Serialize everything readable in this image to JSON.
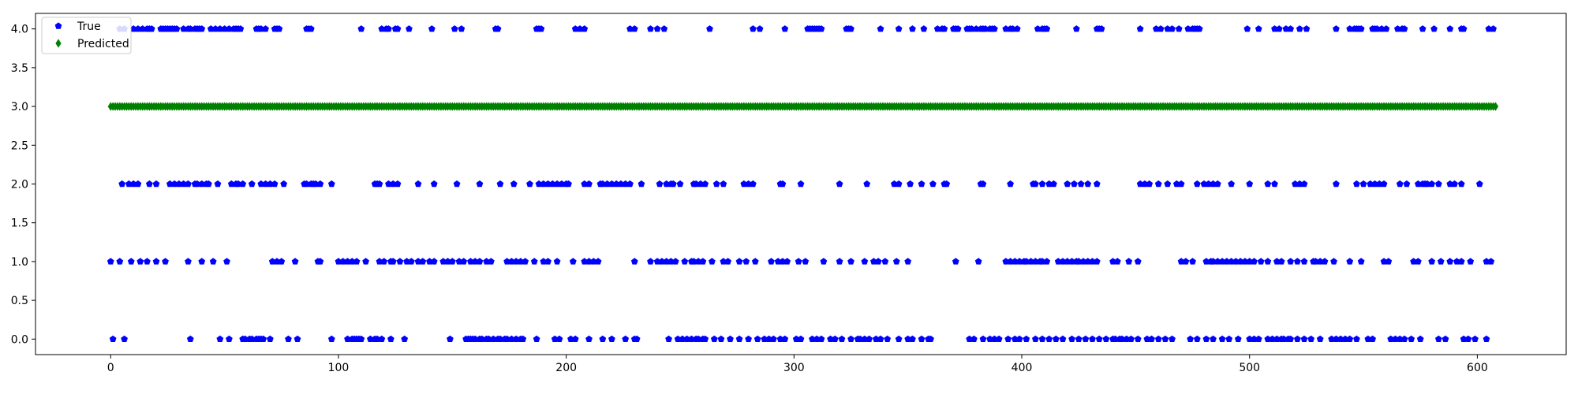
{
  "chart_data": {
    "type": "scatter",
    "title": "",
    "xlabel": "",
    "ylabel": "",
    "xlim": [
      -33,
      639
    ],
    "ylim": [
      -0.2,
      4.2
    ],
    "x_ticks": [
      0,
      100,
      200,
      300,
      400,
      500,
      600
    ],
    "y_ticks": [
      0.0,
      0.5,
      1.0,
      1.5,
      2.0,
      2.5,
      3.0,
      3.5,
      4.0
    ],
    "grid": false,
    "legend": {
      "placement": "top-left",
      "entries": [
        "True",
        "Predicted"
      ]
    },
    "series": [
      {
        "name": "True",
        "marker": "pentagon",
        "color": "#0000ff",
        "groups": [
          {
            "y": 4,
            "x": [
              4,
              6,
              10,
              12,
              14,
              16,
              17,
              18,
              22,
              23,
              24,
              25,
              26,
              27,
              28,
              29,
              32,
              34,
              35,
              37,
              38,
              39,
              40,
              44,
              46,
              48,
              50,
              52,
              54,
              55,
              56,
              57,
              64,
              65,
              66,
              68,
              72,
              73,
              74,
              86,
              87,
              88,
              110,
              119,
              121,
              122,
              125,
              126,
              131,
              141,
              151,
              154,
              169,
              170,
              187,
              188,
              189,
              204,
              206,
              208,
              228,
              230,
              237,
              240,
              243,
              263,
              282,
              285,
              296,
              306,
              307,
              308,
              309,
              310,
              311,
              312,
              323,
              324,
              325,
              338,
              346,
              352,
              357,
              363,
              365,
              366,
              370,
              371,
              372,
              376,
              377,
              378,
              380,
              382,
              383,
              384,
              386,
              387,
              388,
              393,
              395,
              396,
              398,
              407,
              409,
              410,
              411,
              424,
              433,
              434,
              435,
              452,
              459,
              461,
              464,
              466,
              469,
              473,
              475,
              476,
              477,
              478,
              499,
              504,
              511,
              513,
              516,
              518,
              522,
              525,
              538,
              544,
              546,
              547,
              548,
              549,
              554,
              555,
              556,
              558,
              560,
              565,
              567,
              568,
              576,
              581,
              588,
              593,
              594,
              605,
              607
            ]
          },
          {
            "y": 2,
            "x": [
              5,
              8,
              10,
              12,
              17,
              20,
              26,
              28,
              30,
              32,
              34,
              37,
              38,
              40,
              42,
              43,
              47,
              53,
              55,
              56,
              58,
              62,
              66,
              68,
              70,
              72,
              76,
              85,
              86,
              88,
              89,
              90,
              92,
              97,
              116,
              117,
              118,
              122,
              124,
              126,
              135,
              142,
              152,
              162,
              171,
              177,
              184,
              188,
              190,
              192,
              194,
              196,
              198,
              200,
              201,
              208,
              210,
              215,
              216,
              218,
              220,
              222,
              224,
              226,
              228,
              233,
              241,
              244,
              246,
              247,
              250,
              256,
              257,
              259,
              261,
              266,
              269,
              278,
              280,
              282,
              294,
              295,
              303,
              320,
              332,
              344,
              346,
              351,
              356,
              361,
              366,
              367,
              382,
              383,
              395,
              405,
              406,
              409,
              412,
              414,
              420,
              423,
              426,
              429,
              433,
              452,
              454,
              456,
              460,
              464,
              468,
              470,
              477,
              480,
              482,
              484,
              486,
              492,
              500,
              508,
              511,
              520,
              522,
              524,
              538,
              547,
              550,
              553,
              555,
              557,
              559,
              566,
              569,
              574,
              576,
              577,
              578,
              580,
              583,
              588,
              590,
              593,
              601
            ]
          },
          {
            "y": 1,
            "x": [
              0,
              4,
              9,
              13,
              16,
              20,
              24,
              34,
              40,
              45,
              51,
              71,
              73,
              75,
              81,
              91,
              92,
              100,
              102,
              104,
              106,
              108,
              112,
              118,
              120,
              123,
              124,
              127,
              130,
              132,
              135,
              137,
              140,
              142,
              146,
              148,
              150,
              153,
              155,
              158,
              160,
              162,
              165,
              167,
              174,
              176,
              178,
              180,
              182,
              186,
              190,
              192,
              196,
              203,
              208,
              210,
              212,
              214,
              230,
              237,
              240,
              242,
              244,
              246,
              248,
              252,
              255,
              256,
              258,
              260,
              264,
              269,
              271,
              276,
              279,
              283,
              290,
              293,
              295,
              297,
              302,
              305,
              313,
              320,
              325,
              331,
              335,
              337,
              340,
              345,
              350,
              371,
              381,
              393,
              395,
              397,
              399,
              401,
              402,
              404,
              406,
              408,
              409,
              411,
              416,
              418,
              420,
              422,
              424,
              425,
              427,
              429,
              431,
              433,
              440,
              442,
              447,
              451,
              470,
              472,
              475,
              481,
              483,
              484,
              486,
              488,
              490,
              492,
              494,
              496,
              498,
              500,
              502,
              505,
              508,
              512,
              514,
              518,
              521,
              524,
              528,
              529,
              531,
              533,
              537,
              544,
              549,
              559,
              561,
              572,
              574,
              580,
              584,
              588,
              591,
              593,
              597,
              604,
              606
            ]
          },
          {
            "y": 0,
            "x": [
              1,
              6,
              35,
              48,
              52,
              58,
              59,
              61,
              62,
              64,
              65,
              66,
              67,
              70,
              78,
              82,
              97,
              104,
              106,
              107,
              108,
              109,
              110,
              114,
              116,
              117,
              119,
              123,
              129,
              149,
              156,
              157,
              158,
              159,
              160,
              162,
              163,
              165,
              166,
              168,
              170,
              171,
              173,
              174,
              176,
              178,
              180,
              181,
              187,
              195,
              197,
              202,
              204,
              210,
              216,
              220,
              226,
              230,
              231,
              245,
              249,
              251,
              253,
              255,
              257,
              258,
              260,
              261,
              265,
              268,
              272,
              276,
              280,
              284,
              287,
              289,
              291,
              294,
              296,
              301,
              303,
              308,
              310,
              312,
              316,
              318,
              321,
              325,
              328,
              329,
              331,
              333,
              336,
              338,
              341,
              346,
              350,
              352,
              356,
              359,
              360,
              377,
              379,
              383,
              386,
              388,
              390,
              394,
              397,
              399,
              402,
              406,
              409,
              412,
              415,
              418,
              422,
              425,
              428,
              431,
              434,
              437,
              440,
              441,
              443,
              444,
              446,
              448,
              451,
              455,
              457,
              460,
              463,
              466,
              474,
              477,
              481,
              484,
              488,
              491,
              495,
              500,
              502,
              504,
              508,
              510,
              512,
              514,
              515,
              517,
              518,
              521,
              524,
              527,
              531,
              536,
              538,
              540,
              542,
              544,
              547,
              552,
              554,
              562,
              564,
              566,
              568,
              571,
              575,
              583,
              586,
              594,
              596,
              599,
              604
            ]
          }
        ]
      },
      {
        "name": "Predicted",
        "marker": "diamond",
        "color": "#008000",
        "y": 3,
        "x_range": [
          0,
          608
        ]
      }
    ]
  }
}
